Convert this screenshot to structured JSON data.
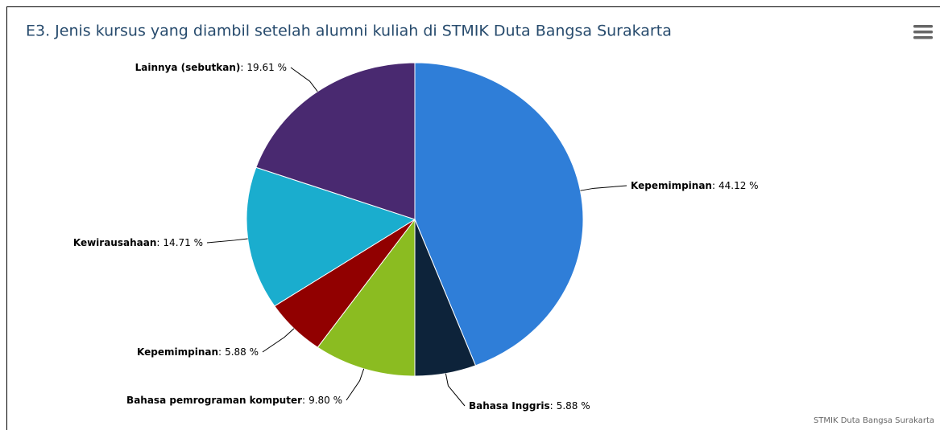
{
  "chart_data": {
    "type": "pie",
    "title": "E3. Jenis kursus yang diambil setelah alumni kuliah di STMIK Duta Bangsa Surakarta",
    "categories": [
      "Kepemimpinan",
      "Bahasa Inggris",
      "Bahasa pemrograman komputer",
      "Kepemimpinan",
      "Kewirausahaan",
      "Lainnya (sebutkan)"
    ],
    "values": [
      44.12,
      5.88,
      9.8,
      5.88,
      14.71,
      19.61
    ],
    "value_labels": [
      "44.12 %",
      "5.88 %",
      "9.80 %",
      "5.88 %",
      "14.71 %",
      "19.61 %"
    ],
    "label_separator": ":",
    "colors": [
      "#2f7ed8",
      "#0d233a",
      "#8bbc21",
      "#910000",
      "#1aadce",
      "#492970"
    ],
    "credits": "STMIK Duta Bangsa Surakarta"
  }
}
